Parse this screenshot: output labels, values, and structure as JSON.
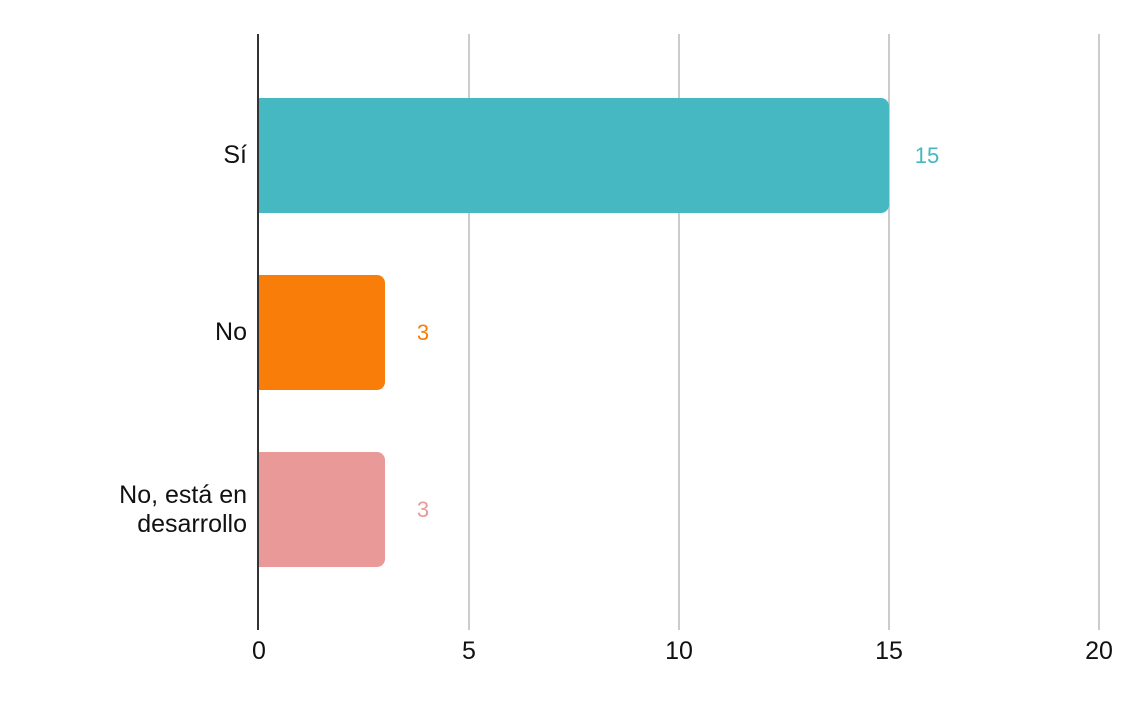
{
  "chart_data": {
    "type": "bar",
    "orientation": "horizontal",
    "title": "",
    "categories": [
      "Sí",
      "No",
      "No, está en desarrollo"
    ],
    "values": [
      15,
      3,
      3
    ],
    "bar_colors": [
      "#45b8c2",
      "#f97d09",
      "#ea9999"
    ],
    "value_label_colors": [
      "#45b8c2",
      "#f97d09",
      "#ea9999"
    ],
    "x_ticks": [
      0,
      5,
      10,
      15,
      20
    ],
    "xlim": [
      0,
      20
    ],
    "grid": true,
    "legend": "none",
    "value_labels_shown": true,
    "xlabel": "",
    "ylabel": ""
  },
  "colors": {
    "background": "#ffffff",
    "axis_line": "#333333",
    "gridline": "#cccccc",
    "label_text": "#111111"
  }
}
